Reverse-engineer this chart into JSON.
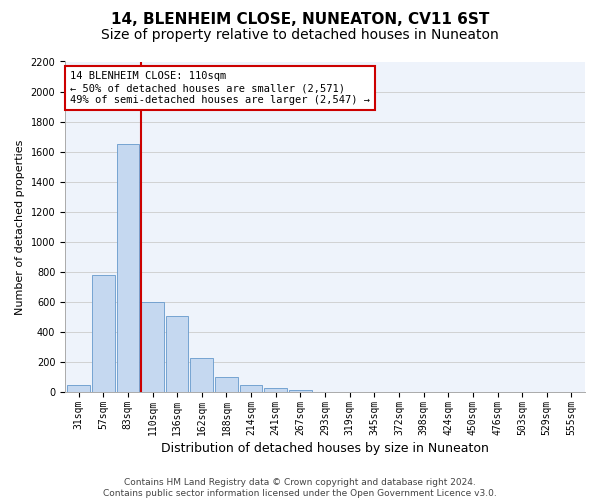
{
  "title1": "14, BLENHEIM CLOSE, NUNEATON, CV11 6ST",
  "title2": "Size of property relative to detached houses in Nuneaton",
  "xlabel": "Distribution of detached houses by size in Nuneaton",
  "ylabel": "Number of detached properties",
  "footer": "Contains HM Land Registry data © Crown copyright and database right 2024.\nContains public sector information licensed under the Open Government Licence v3.0.",
  "categories": [
    "31sqm",
    "57sqm",
    "83sqm",
    "110sqm",
    "136sqm",
    "162sqm",
    "188sqm",
    "214sqm",
    "241sqm",
    "267sqm",
    "293sqm",
    "319sqm",
    "345sqm",
    "372sqm",
    "398sqm",
    "424sqm",
    "450sqm",
    "476sqm",
    "503sqm",
    "529sqm",
    "555sqm"
  ],
  "values": [
    50,
    780,
    1650,
    600,
    510,
    230,
    100,
    50,
    30,
    15,
    0,
    0,
    0,
    0,
    0,
    0,
    0,
    0,
    0,
    0,
    0
  ],
  "bar_color": "#c5d8f0",
  "bar_edge_color": "#6699cc",
  "redline_index": 3,
  "annotation_line1": "14 BLENHEIM CLOSE: 110sqm",
  "annotation_line2": "← 50% of detached houses are smaller (2,571)",
  "annotation_line3": "49% of semi-detached houses are larger (2,547) →",
  "annotation_box_color": "#ffffff",
  "annotation_box_edge": "#cc0000",
  "redline_color": "#cc0000",
  "ylim": [
    0,
    2200
  ],
  "yticks": [
    0,
    200,
    400,
    600,
    800,
    1000,
    1200,
    1400,
    1600,
    1800,
    2000,
    2200
  ],
  "grid_color": "#cccccc",
  "bg_color": "#eef3fb",
  "title1_fontsize": 11,
  "title2_fontsize": 10,
  "xlabel_fontsize": 9,
  "ylabel_fontsize": 8,
  "tick_fontsize": 7,
  "annotation_fontsize": 7.5,
  "footer_fontsize": 6.5
}
